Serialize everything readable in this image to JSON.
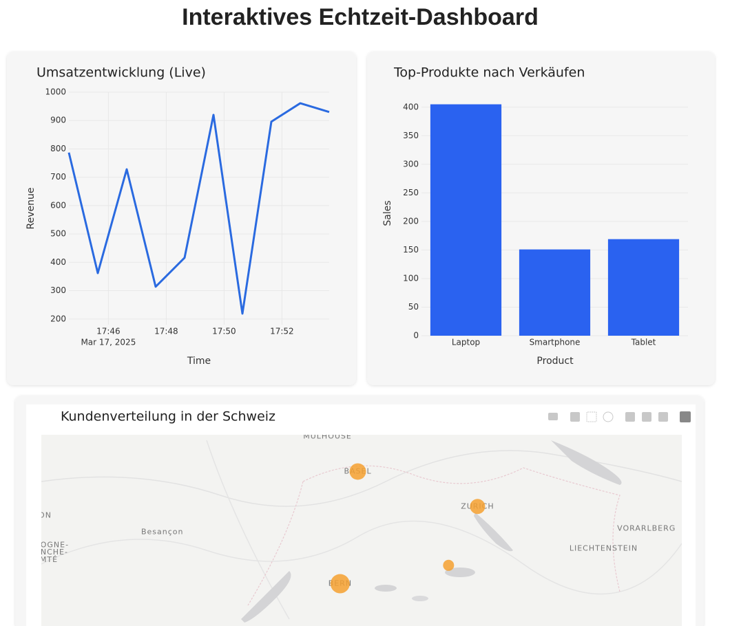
{
  "title": "Interaktives Echtzeit-Dashboard",
  "chart_data": [
    {
      "type": "line",
      "title": "Umsatzentwicklung (Live)",
      "x_label": "Time",
      "y_label": "Revenue",
      "color": "#2a6ae0",
      "grid": true,
      "series": [
        {
          "name": "Revenue",
          "color": "#2a6ae0",
          "x": [
            "2025-03-17T17:44:38",
            "2025-03-17T17:45:38",
            "2025-03-17T17:46:38",
            "2025-03-17T17:47:38",
            "2025-03-17T17:48:38",
            "2025-03-17T17:49:38",
            "2025-03-17T17:50:38",
            "2025-03-17T17:51:38",
            "2025-03-17T17:52:38",
            "2025-03-17T17:53:38"
          ],
          "values": [
            787,
            362,
            728,
            314,
            416,
            920,
            219,
            896,
            961,
            930
          ]
        }
      ],
      "xlim": [
        "2025-03-17T17:44:38",
        "2025-03-17T17:53:38"
      ],
      "xticks": [
        {
          "value": "2025-03-17T17:46:00",
          "label": "17:46"
        },
        {
          "value": "2025-03-17T17:48:00",
          "label": "17:48"
        },
        {
          "value": "2025-03-17T17:50:00",
          "label": "17:50"
        },
        {
          "value": "2025-03-17T17:52:00",
          "label": "17:52"
        }
      ],
      "x_date": "Mar 17, 2025",
      "ylim": [
        180,
        1000
      ],
      "yticks": [
        200,
        300,
        400,
        500,
        600,
        700,
        800,
        900,
        1000
      ]
    },
    {
      "type": "bar",
      "title": "Top-Produkte nach Verkäufen",
      "x_label": "Product",
      "y_label": "Sales",
      "color": "#2a62f0",
      "grid": true,
      "categories": [
        "Laptop",
        "Smartphone",
        "Tablet"
      ],
      "values": [
        405,
        151,
        169
      ],
      "ylim": [
        0,
        425
      ],
      "yticks": [
        0,
        50,
        100,
        150,
        200,
        250,
        300,
        350,
        400
      ]
    },
    {
      "type": "scattermap",
      "title": "Kundenverteilung in der Schweiz",
      "color": "#f5a030",
      "lonlim": [
        5.08,
        10.16
      ],
      "latlim": [
        46.72,
        47.76
      ],
      "points": {
        "lon": [
          7.59,
          8.54,
          7.45,
          8.31
        ],
        "lat": [
          47.56,
          47.37,
          46.95,
          47.05
        ],
        "sizes": [
          12,
          11,
          14,
          8
        ]
      },
      "place_labels": [
        {
          "text": "MULHOUSE",
          "lon": 7.35,
          "lat": 47.75
        },
        {
          "text": "BASEL",
          "lon": 7.59,
          "lat": 47.56
        },
        {
          "text": "ZURICH",
          "lon": 8.54,
          "lat": 47.37
        },
        {
          "text": "BERN",
          "lon": 7.45,
          "lat": 46.95
        },
        {
          "text": "Besançon",
          "lon": 6.04,
          "lat": 47.23
        },
        {
          "text": "VORARLBERG",
          "lon": 9.88,
          "lat": 47.25
        },
        {
          "text": "LIECHTENSTEIN",
          "lon": 9.54,
          "lat": 47.14
        },
        {
          "text": "ON",
          "lon": 5.11,
          "lat": 47.32
        },
        {
          "text": "GOGNE-",
          "lon": 5.16,
          "lat": 47.16
        },
        {
          "text": "ANCHE-",
          "lon": 5.16,
          "lat": 47.12
        },
        {
          "text": "MTÉ",
          "lon": 5.14,
          "lat": 47.08
        }
      ]
    }
  ]
}
